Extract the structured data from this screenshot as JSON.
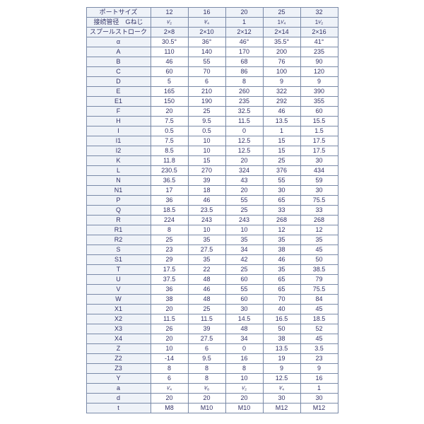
{
  "colors": {
    "header_bg": "#eef2f8",
    "border": "#7a8aa8",
    "text": "#333366"
  },
  "header_rows": [
    {
      "label": "ポートサイズ",
      "values": [
        "12",
        "16",
        "20",
        "25",
        "32"
      ]
    },
    {
      "label": "接続管径　Gねじ",
      "values": [
        "¹⁄₂",
        "³⁄₄",
        "1",
        "1¹⁄₄",
        "1¹⁄₂"
      ]
    },
    {
      "label": "スプールストローク",
      "values": [
        "2×8",
        "2×10",
        "2×12",
        "2×14",
        "2×16"
      ]
    }
  ],
  "data_rows": [
    {
      "label": "α",
      "values": [
        "30.5°",
        "36°",
        "46°",
        "35.5°",
        "41°"
      ]
    },
    {
      "label": "A",
      "values": [
        "110",
        "140",
        "170",
        "200",
        "235"
      ]
    },
    {
      "label": "B",
      "values": [
        "46",
        "55",
        "68",
        "76",
        "90"
      ]
    },
    {
      "label": "C",
      "values": [
        "60",
        "70",
        "86",
        "100",
        "120"
      ]
    },
    {
      "label": "D",
      "values": [
        "5",
        "6",
        "8",
        "9",
        "9"
      ]
    },
    {
      "label": "E",
      "values": [
        "165",
        "210",
        "260",
        "322",
        "390"
      ]
    },
    {
      "label": "E1",
      "values": [
        "150",
        "190",
        "235",
        "292",
        "355"
      ]
    },
    {
      "label": "F",
      "values": [
        "20",
        "25",
        "32.5",
        "46",
        "60"
      ]
    },
    {
      "label": "H",
      "values": [
        "7.5",
        "9.5",
        "11.5",
        "13.5",
        "15.5"
      ]
    },
    {
      "label": "I",
      "values": [
        "0.5",
        "0.5",
        "0",
        "1",
        "1.5"
      ]
    },
    {
      "label": "I1",
      "values": [
        "7.5",
        "10",
        "12.5",
        "15",
        "17.5"
      ]
    },
    {
      "label": "I2",
      "values": [
        "8.5",
        "10",
        "12.5",
        "15",
        "17.5"
      ]
    },
    {
      "label": "K",
      "values": [
        "11.8",
        "15",
        "20",
        "25",
        "30"
      ]
    },
    {
      "label": "L",
      "values": [
        "230.5",
        "270",
        "324",
        "376",
        "434"
      ]
    },
    {
      "label": "N",
      "values": [
        "36.5",
        "39",
        "43",
        "55",
        "59"
      ]
    },
    {
      "label": "N1",
      "values": [
        "17",
        "18",
        "20",
        "30",
        "30"
      ]
    },
    {
      "label": "P",
      "values": [
        "36",
        "46",
        "55",
        "65",
        "75.5"
      ]
    },
    {
      "label": "Q",
      "values": [
        "18.5",
        "23.5",
        "25",
        "33",
        "33"
      ]
    },
    {
      "label": "R",
      "values": [
        "224",
        "243",
        "243",
        "268",
        "268"
      ]
    },
    {
      "label": "R1",
      "values": [
        "8",
        "10",
        "10",
        "12",
        "12"
      ]
    },
    {
      "label": "R2",
      "values": [
        "25",
        "35",
        "35",
        "35",
        "35"
      ]
    },
    {
      "label": "S",
      "values": [
        "23",
        "27.5",
        "34",
        "38",
        "45"
      ]
    },
    {
      "label": "S1",
      "values": [
        "29",
        "35",
        "42",
        "46",
        "50"
      ]
    },
    {
      "label": "T",
      "values": [
        "17.5",
        "22",
        "25",
        "35",
        "38.5"
      ]
    },
    {
      "label": "U",
      "values": [
        "37.5",
        "48",
        "60",
        "65",
        "79"
      ]
    },
    {
      "label": "V",
      "values": [
        "36",
        "46",
        "55",
        "65",
        "75.5"
      ]
    },
    {
      "label": "W",
      "values": [
        "38",
        "48",
        "60",
        "70",
        "84"
      ]
    },
    {
      "label": "X1",
      "values": [
        "20",
        "25",
        "30",
        "40",
        "45"
      ]
    },
    {
      "label": "X2",
      "values": [
        "11.5",
        "11.5",
        "14.5",
        "16.5",
        "18.5"
      ]
    },
    {
      "label": "X3",
      "values": [
        "26",
        "39",
        "48",
        "50",
        "52"
      ]
    },
    {
      "label": "X4",
      "values": [
        "20",
        "27.5",
        "34",
        "38",
        "45"
      ]
    },
    {
      "label": "Z",
      "values": [
        "10",
        "6",
        "0",
        "13.5",
        "3.5"
      ]
    },
    {
      "label": "Z2",
      "values": [
        "-14",
        "9.5",
        "16",
        "19",
        "23"
      ]
    },
    {
      "label": "Z3",
      "values": [
        "8",
        "8",
        "8",
        "9",
        "9"
      ]
    },
    {
      "label": "Y",
      "values": [
        "6",
        "8",
        "10",
        "12.5",
        "16"
      ]
    },
    {
      "label": "a",
      "values": [
        "¹⁄₄",
        "³⁄₈",
        "¹⁄₂",
        "³⁄₄",
        "1"
      ]
    },
    {
      "label": "d",
      "values": [
        "20",
        "20",
        "20",
        "30",
        "30"
      ]
    },
    {
      "label": "t",
      "values": [
        "M8",
        "M10",
        "M10",
        "M12",
        "M12"
      ]
    }
  ]
}
